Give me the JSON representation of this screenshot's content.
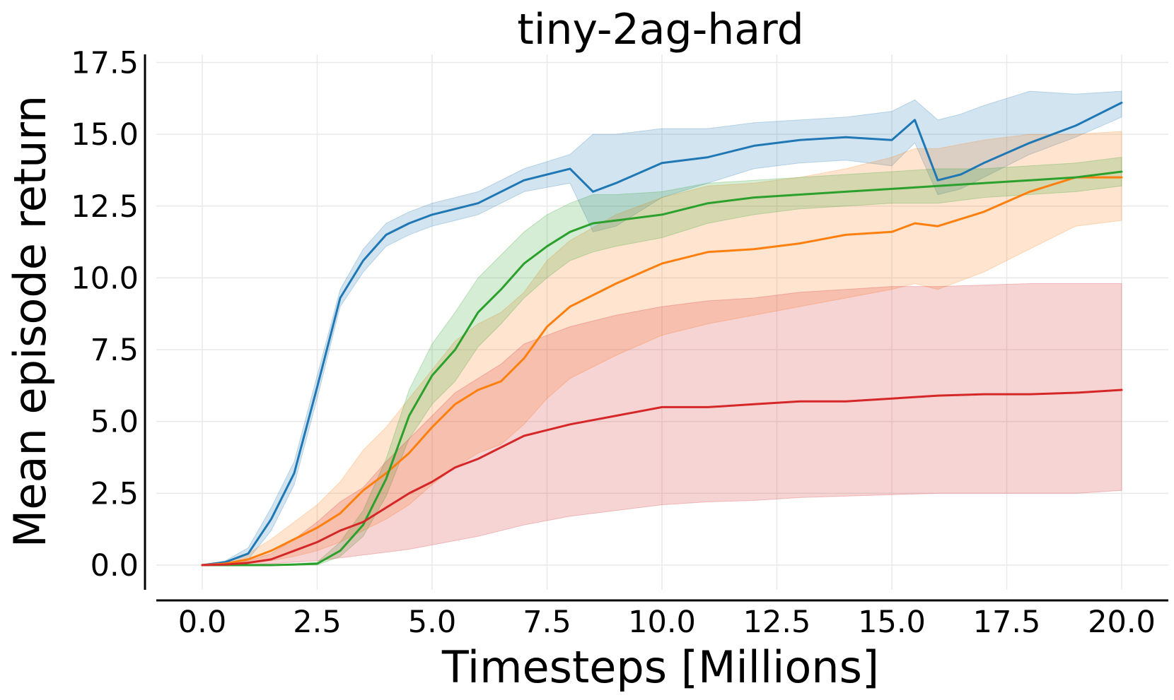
{
  "chart_data": {
    "type": "line",
    "title": "tiny-2ag-hard",
    "xlabel": "Timesteps [Millions]",
    "ylabel": "Mean episode return",
    "xlim": [
      -1.0,
      20.9
    ],
    "ylim": [
      -0.9,
      17.5
    ],
    "xticks": [
      "0.0",
      "2.5",
      "5.0",
      "7.5",
      "10.0",
      "12.5",
      "15.0",
      "17.5",
      "20.0"
    ],
    "yticks": [
      "0.0",
      "2.5",
      "5.0",
      "7.5",
      "10.0",
      "12.5",
      "15.0",
      "17.5"
    ],
    "grid": true,
    "legend": "none",
    "series": [
      {
        "color": "#1f77b4",
        "x": [
          0,
          0.5,
          1.0,
          1.5,
          2.0,
          2.5,
          3.0,
          3.5,
          4.0,
          4.5,
          5.0,
          5.5,
          6.0,
          7.0,
          8.0,
          8.5,
          9.0,
          10.0,
          11.0,
          12.0,
          13.0,
          14.0,
          15.0,
          15.5,
          16.0,
          16.5,
          17.0,
          18.0,
          19.0,
          20.0
        ],
        "y": [
          0.0,
          0.1,
          0.4,
          1.6,
          3.2,
          6.2,
          9.3,
          10.6,
          11.5,
          11.9,
          12.2,
          12.4,
          12.6,
          13.4,
          13.8,
          13.0,
          13.3,
          14.0,
          14.2,
          14.6,
          14.8,
          14.9,
          14.8,
          15.5,
          13.4,
          13.6,
          14.0,
          14.7,
          15.3,
          16.1
        ],
        "lower": [
          0.0,
          0.05,
          0.2,
          1.2,
          2.8,
          5.8,
          9.0,
          10.2,
          11.1,
          11.5,
          11.8,
          12.0,
          12.2,
          13.0,
          13.3,
          11.6,
          11.8,
          12.8,
          13.3,
          13.8,
          14.0,
          14.1,
          13.9,
          14.7,
          12.9,
          13.1,
          13.5,
          14.3,
          14.9,
          15.6
        ],
        "upper": [
          0.0,
          0.15,
          0.6,
          2.0,
          3.6,
          6.6,
          9.6,
          11.0,
          11.9,
          12.3,
          12.6,
          12.8,
          13.0,
          13.8,
          14.3,
          15.0,
          15.0,
          15.2,
          15.2,
          15.4,
          15.5,
          15.6,
          15.8,
          16.2,
          15.5,
          15.7,
          16.0,
          16.5,
          16.4,
          16.5
        ]
      },
      {
        "color": "#ff7f0e",
        "x": [
          0,
          0.5,
          1.0,
          1.5,
          2.0,
          2.5,
          3.0,
          3.5,
          4.0,
          4.5,
          5.0,
          5.5,
          6.0,
          6.5,
          7.0,
          7.5,
          8.0,
          9.0,
          10.0,
          11.0,
          12.0,
          13.0,
          14.0,
          15.0,
          15.5,
          16.0,
          17.0,
          18.0,
          19.0,
          20.0
        ],
        "y": [
          0.0,
          0.05,
          0.2,
          0.5,
          0.9,
          1.3,
          1.8,
          2.6,
          3.2,
          3.9,
          4.8,
          5.6,
          6.1,
          6.4,
          7.2,
          8.3,
          9.0,
          9.8,
          10.5,
          10.9,
          11.0,
          11.2,
          11.5,
          11.6,
          11.9,
          11.8,
          12.3,
          13.0,
          13.5,
          13.5
        ],
        "lower": [
          0.0,
          0.0,
          0.05,
          0.15,
          0.3,
          0.5,
          0.8,
          1.2,
          1.6,
          2.1,
          2.8,
          3.4,
          3.9,
          4.2,
          4.9,
          5.8,
          6.5,
          7.3,
          8.0,
          8.4,
          8.7,
          9.0,
          9.3,
          9.6,
          9.8,
          9.6,
          10.2,
          11.0,
          11.8,
          12.0
        ],
        "upper": [
          0.0,
          0.1,
          0.4,
          0.9,
          1.5,
          2.1,
          2.9,
          4.0,
          4.8,
          5.8,
          6.8,
          7.8,
          8.4,
          8.8,
          9.5,
          10.6,
          11.3,
          12.2,
          12.8,
          13.2,
          13.3,
          13.5,
          13.8,
          14.2,
          14.5,
          14.5,
          14.8,
          15.0,
          15.0,
          15.1
        ]
      },
      {
        "color": "#2ca02c",
        "x": [
          0,
          0.5,
          1.0,
          1.5,
          2.0,
          2.5,
          3.0,
          3.5,
          4.0,
          4.5,
          5.0,
          5.5,
          6.0,
          6.5,
          7.0,
          7.5,
          8.0,
          8.5,
          9.0,
          10.0,
          11.0,
          12.0,
          13.0,
          14.0,
          15.0,
          16.0,
          17.0,
          18.0,
          19.0,
          20.0
        ],
        "y": [
          0.0,
          0.0,
          0.0,
          0.0,
          0.02,
          0.05,
          0.5,
          1.4,
          3.0,
          5.2,
          6.6,
          7.5,
          8.8,
          9.6,
          10.5,
          11.1,
          11.6,
          11.9,
          12.0,
          12.2,
          12.6,
          12.8,
          12.9,
          13.0,
          13.1,
          13.2,
          13.3,
          13.4,
          13.5,
          13.7
        ],
        "lower": [
          0.0,
          0.0,
          0.0,
          0.0,
          0.0,
          0.0,
          0.3,
          1.0,
          2.4,
          4.4,
          5.6,
          6.4,
          7.6,
          8.4,
          9.3,
          10.0,
          10.6,
          10.9,
          11.1,
          11.4,
          11.9,
          12.2,
          12.4,
          12.5,
          12.6,
          12.6,
          12.8,
          12.9,
          13.0,
          13.2
        ],
        "upper": [
          0.0,
          0.0,
          0.0,
          0.0,
          0.05,
          0.1,
          0.8,
          1.9,
          3.7,
          6.1,
          7.7,
          8.8,
          10.0,
          10.8,
          11.6,
          12.2,
          12.6,
          12.9,
          12.9,
          13.0,
          13.3,
          13.4,
          13.5,
          13.6,
          13.7,
          13.8,
          13.8,
          13.9,
          14.0,
          14.2
        ]
      },
      {
        "color": "#d62728",
        "x": [
          0,
          0.5,
          1.0,
          1.5,
          2.0,
          2.5,
          3.0,
          3.5,
          4.0,
          4.5,
          5.0,
          5.5,
          6.0,
          6.5,
          7.0,
          7.5,
          8.0,
          9.0,
          10.0,
          11.0,
          12.0,
          13.0,
          14.0,
          15.0,
          16.0,
          17.0,
          18.0,
          19.0,
          20.0
        ],
        "y": [
          0.0,
          0.02,
          0.08,
          0.2,
          0.5,
          0.8,
          1.2,
          1.5,
          2.0,
          2.5,
          2.9,
          3.4,
          3.7,
          4.1,
          4.5,
          4.7,
          4.9,
          5.2,
          5.5,
          5.5,
          5.6,
          5.7,
          5.7,
          5.8,
          5.9,
          5.95,
          5.95,
          6.0,
          6.1
        ],
        "lower": [
          0.0,
          0.0,
          0.02,
          0.05,
          0.1,
          0.15,
          0.25,
          0.35,
          0.45,
          0.55,
          0.7,
          0.85,
          1.0,
          1.2,
          1.4,
          1.55,
          1.7,
          1.9,
          2.1,
          2.2,
          2.25,
          2.35,
          2.4,
          2.45,
          2.5,
          2.5,
          2.5,
          2.5,
          2.6
        ],
        "upper": [
          0.0,
          0.05,
          0.15,
          0.4,
          0.9,
          1.5,
          2.2,
          2.7,
          3.6,
          4.4,
          5.2,
          6.0,
          6.5,
          7.0,
          7.7,
          8.0,
          8.3,
          8.7,
          9.0,
          9.2,
          9.3,
          9.5,
          9.6,
          9.7,
          9.7,
          9.75,
          9.8,
          9.8,
          9.8
        ]
      }
    ]
  }
}
